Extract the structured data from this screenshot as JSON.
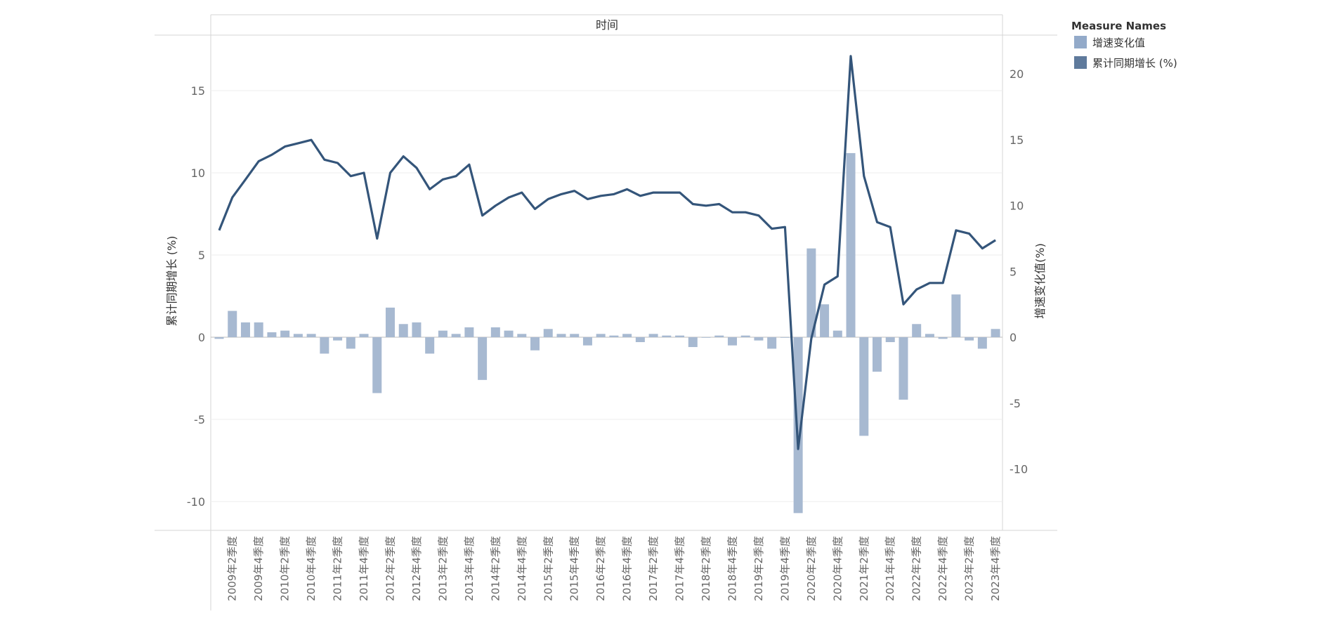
{
  "chart_data": {
    "type": "bar",
    "header": "时间",
    "y_left_label": "累计同期增长 (%)",
    "y_right_label": "增速变化值(%)",
    "y_left_ticks": [
      15,
      10,
      5,
      0,
      -5,
      -10
    ],
    "y_right_ticks": [
      20,
      15,
      10,
      5,
      0,
      -5,
      -10
    ],
    "y_left_range": [
      -11.5,
      18
    ],
    "x_tick_labels": [
      "2009年2季度",
      "2009年4季度",
      "2010年2季度",
      "2010年4季度",
      "2011年2季度",
      "2011年4季度",
      "2012年2季度",
      "2012年4季度",
      "2013年2季度",
      "2013年4季度",
      "2014年2季度",
      "2014年4季度",
      "2015年2季度",
      "2015年4季度",
      "2016年2季度",
      "2016年4季度",
      "2017年2季度",
      "2017年4季度",
      "2018年2季度",
      "2018年4季度",
      "2019年2季度",
      "2019年4季度",
      "2020年2季度",
      "2020年4季度",
      "2021年2季度",
      "2021年4季度",
      "2022年2季度",
      "2022年4季度",
      "2023年2季度",
      "2023年4季度"
    ],
    "legend": {
      "title": "Measure Names",
      "items": [
        {
          "name": "增速变化值",
          "color": "#93aac9"
        },
        {
          "name": "累计同期增长 (%)",
          "color": "#5f7a9c"
        }
      ]
    },
    "series": [
      {
        "name": "增速变化值",
        "type": "bar",
        "color": "#a7b9d1",
        "values": [
          -0.1,
          1.6,
          0.9,
          0.9,
          0.3,
          0.4,
          0.2,
          0.2,
          -1.0,
          -0.2,
          -0.7,
          0.2,
          -3.4,
          1.8,
          0.8,
          0.9,
          -1.0,
          0.4,
          0.2,
          0.6,
          -2.6,
          0.6,
          0.4,
          0.2,
          -0.8,
          0.5,
          0.2,
          0.2,
          -0.5,
          0.2,
          0.1,
          0.2,
          -0.3,
          0.2,
          0.1,
          0.1,
          -0.6,
          0.0,
          0.1,
          -0.5,
          0.1,
          -0.2,
          -0.7,
          0.0,
          -10.7,
          5.4,
          2.0,
          0.4,
          11.2,
          -6.0,
          -2.1,
          -0.3,
          -3.8,
          0.8,
          0.2,
          -0.1,
          2.6,
          -0.2,
          -0.7,
          0.5
        ]
      },
      {
        "name": "累计同期增长 (%)",
        "type": "line",
        "color": "#34557a",
        "values": [
          6.5,
          8.5,
          9.6,
          10.7,
          11.1,
          11.6,
          11.8,
          12.0,
          10.8,
          10.6,
          9.8,
          10.0,
          6.0,
          10.0,
          11.0,
          10.3,
          9.0,
          9.6,
          9.8,
          10.5,
          7.4,
          8.0,
          8.5,
          8.8,
          7.8,
          8.4,
          8.7,
          8.9,
          8.4,
          8.6,
          8.7,
          9.0,
          8.6,
          8.8,
          8.8,
          8.8,
          8.1,
          8.0,
          8.1,
          7.6,
          7.6,
          7.4,
          6.6,
          6.7,
          -6.8,
          -0.1,
          3.2,
          3.7,
          17.1,
          9.8,
          7.0,
          6.7,
          2.0,
          2.9,
          3.3,
          3.3,
          6.5,
          6.3,
          5.4,
          5.9
        ]
      }
    ]
  }
}
